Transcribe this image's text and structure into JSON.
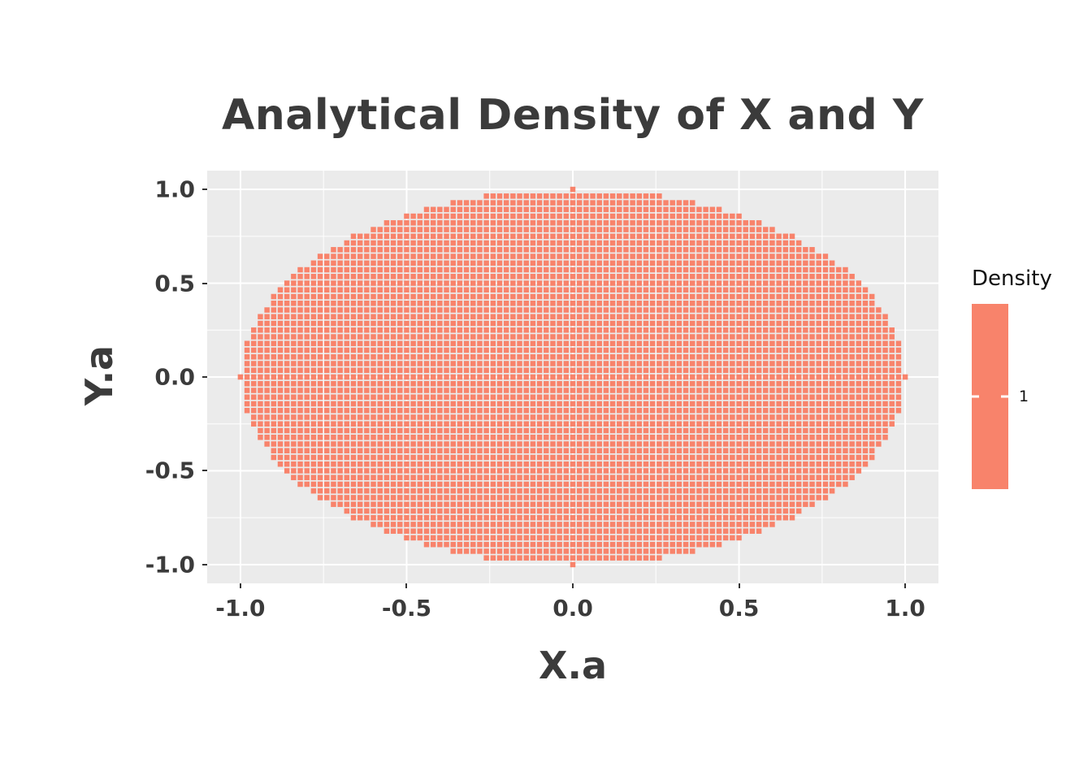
{
  "chart_data": {
    "type": "heatmap",
    "title": "Analytical Density of X and Y",
    "xlabel": "X.a",
    "ylabel": "Y.a",
    "x_ticks": [
      "-1.0",
      "-0.5",
      "0.0",
      "0.5",
      "1.0"
    ],
    "x_tick_values": [
      -1.0,
      -0.5,
      0.0,
      0.5,
      1.0
    ],
    "y_ticks": [
      "1.0",
      "0.5",
      "0.0",
      "-0.5",
      "-1.0"
    ],
    "y_tick_values": [
      1.0,
      0.5,
      0.0,
      -0.5,
      -1.0
    ],
    "x_minor": [
      -0.75,
      -0.25,
      0.25,
      0.75
    ],
    "y_minor": [
      -0.75,
      -0.25,
      0.25,
      0.75
    ],
    "xlim": [
      -1.1,
      1.1
    ],
    "ylim": [
      -1.1,
      1.1
    ],
    "grid": true,
    "legend": {
      "title": "Density",
      "tick_label": "1",
      "position": "right"
    },
    "value": 1,
    "region": "density = 1 on the unit disk (x^2 + y^2 <= 1), no tiles outside",
    "tile_grid": {
      "nx": 101,
      "ny": 57,
      "x_range": [
        -1,
        1
      ],
      "y_range": [
        -1,
        1
      ]
    },
    "colors": {
      "tile": "#F8836B",
      "panel_bg": "#EBEBEB",
      "gridline": "#FFFFFF",
      "text": "#3B3B3B"
    }
  }
}
